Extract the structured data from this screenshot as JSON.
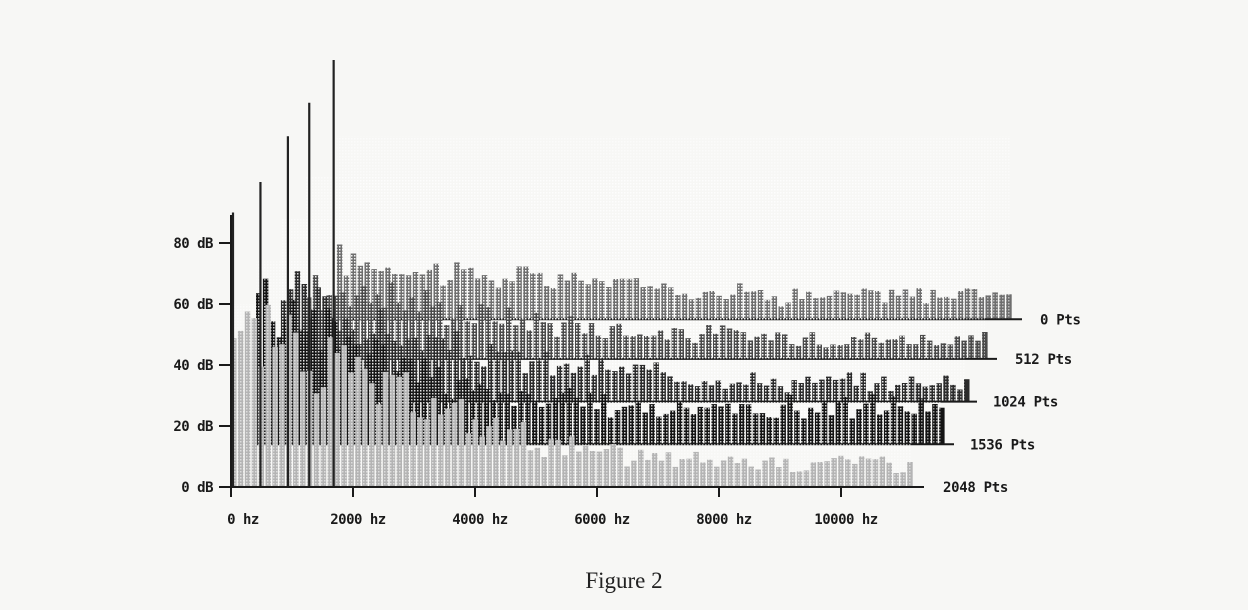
{
  "caption": "Figure 2",
  "chart_data": {
    "type": "bar",
    "title": "",
    "xlabel": "",
    "ylabel": "",
    "x_ticks": [
      "0 hz",
      "2000 hz",
      "4000 hz",
      "6000 hz",
      "8000 hz",
      "10000 hz"
    ],
    "y_ticks": [
      "0 dB",
      "20 dB",
      "40 dB",
      "60 dB",
      "80 dB"
    ],
    "xlim": [
      0,
      11000
    ],
    "ylim": [
      0,
      90
    ],
    "layout": "waterfall (stacked spectra, each offset upward and to the right)",
    "series": [
      {
        "name": "0 Pts",
        "offset_db": 55,
        "start_hz": 1700,
        "peaks": [
          {
            "x": 1800,
            "y": 18
          },
          {
            "x": 2800,
            "y": 16
          },
          {
            "x": 4100,
            "y": 13
          },
          {
            "x": 5800,
            "y": 12
          },
          {
            "x": 7500,
            "y": 9
          },
          {
            "x": 9500,
            "y": 7
          },
          {
            "x": 11800,
            "y": 8
          }
        ]
      },
      {
        "name": "512 Pts",
        "offset_db": 42,
        "start_hz": 1200,
        "peaks": [
          {
            "x": 1300,
            "y": 22
          },
          {
            "x": 2200,
            "y": 20
          },
          {
            "x": 3500,
            "y": 15
          },
          {
            "x": 5200,
            "y": 11
          },
          {
            "x": 7000,
            "y": 8
          },
          {
            "x": 9000,
            "y": 7
          },
          {
            "x": 11600,
            "y": 6
          }
        ]
      },
      {
        "name": "1024 Pts",
        "offset_db": 28,
        "start_hz": 800,
        "peaks": [
          {
            "x": 900,
            "y": 33
          },
          {
            "x": 1800,
            "y": 25
          },
          {
            "x": 3000,
            "y": 18
          },
          {
            "x": 4800,
            "y": 12
          },
          {
            "x": 6800,
            "y": 9
          },
          {
            "x": 8800,
            "y": 6
          },
          {
            "x": 11300,
            "y": 6
          }
        ]
      },
      {
        "name": "1536 Pts",
        "offset_db": 14,
        "start_hz": 400,
        "peaks": [
          {
            "x": 500,
            "y": 47
          },
          {
            "x": 1400,
            "y": 37
          },
          {
            "x": 2600,
            "y": 25
          },
          {
            "x": 4200,
            "y": 15
          },
          {
            "x": 6200,
            "y": 12
          },
          {
            "x": 8500,
            "y": 11
          },
          {
            "x": 11000,
            "y": 12
          }
        ]
      },
      {
        "name": "2048 Pts",
        "offset_db": 0,
        "start_hz": 0,
        "peaks": [
          {
            "x": 0,
            "y": 47
          },
          {
            "x": 1200,
            "y": 42
          },
          {
            "x": 2400,
            "y": 30
          },
          {
            "x": 4000,
            "y": 20
          },
          {
            "x": 6000,
            "y": 10
          },
          {
            "x": 8000,
            "y": 8
          },
          {
            "x": 11000,
            "y": 8
          }
        ]
      }
    ],
    "spikes": [
      {
        "x": 0,
        "y": 90
      },
      {
        "x": 450,
        "y": 100
      },
      {
        "x": 900,
        "y": 115
      },
      {
        "x": 1250,
        "y": 126
      },
      {
        "x": 1650,
        "y": 140
      }
    ],
    "colors": {
      "0 Pts": "#6e6e6e",
      "512 Pts": "#4a4a4a",
      "1024 Pts": "#2b2b2b",
      "1536 Pts": "#141414",
      "2048 Pts": "#b4b4b4",
      "axis": "#1a1a1a"
    }
  }
}
